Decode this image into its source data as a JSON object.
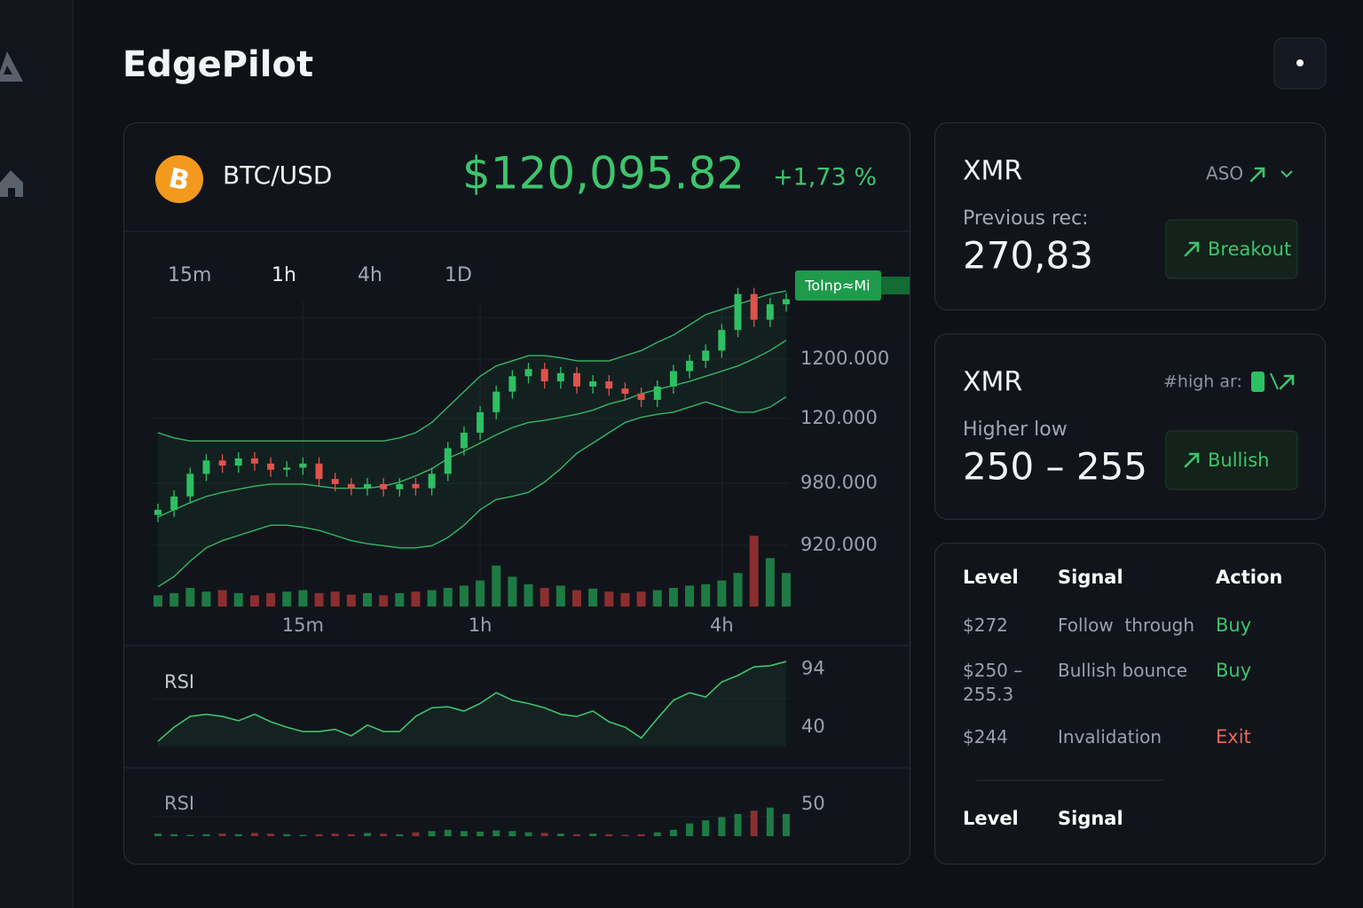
{
  "app": {
    "title": "EdgePilot"
  },
  "ticker": {
    "symbol": "BTC/USD",
    "price": "$120,095.82",
    "change": "+1,73 %",
    "price_tag": "Tolnp≈Mi"
  },
  "timeframes": {
    "items": [
      "15m",
      "1h",
      "4h",
      "1D"
    ],
    "active_index": 1
  },
  "chart_data": {
    "type": "candlestick",
    "xlim": [
      0,
      39
    ],
    "ylim": [
      860,
      1175
    ],
    "xticks": [
      {
        "value": 9,
        "label": "15m"
      },
      {
        "value": 20,
        "label": "1h"
      },
      {
        "value": 35,
        "label": "4h"
      }
    ],
    "axis_labels": [
      "1200.000",
      "120.000",
      "980.000",
      "920.000"
    ],
    "up_color": "#2fbf63",
    "down_color": "#e0524a",
    "volume_up_color": "#1e7a44",
    "volume_down_color": "#8a2f2f",
    "band_color": "#33b864",
    "open": [
      950,
      955,
      968,
      990,
      1003,
      998,
      1005,
      1000,
      994,
      996,
      1000,
      985,
      980,
      976,
      980,
      975,
      980,
      976,
      990,
      1015,
      1030,
      1050,
      1070,
      1085,
      1092,
      1080,
      1088,
      1075,
      1080,
      1073,
      1068,
      1062,
      1075,
      1090,
      1100,
      1110,
      1130,
      1165,
      1140,
      1155
    ],
    "close": [
      955,
      968,
      990,
      1003,
      998,
      1005,
      1000,
      994,
      996,
      1000,
      985,
      980,
      976,
      980,
      975,
      980,
      976,
      990,
      1015,
      1030,
      1050,
      1070,
      1085,
      1092,
      1080,
      1088,
      1075,
      1080,
      1073,
      1068,
      1062,
      1075,
      1090,
      1100,
      1110,
      1130,
      1165,
      1140,
      1155,
      1160
    ],
    "high": [
      961,
      974,
      996,
      1009,
      1009,
      1011,
      1011,
      1006,
      1002,
      1006,
      1006,
      991,
      986,
      986,
      986,
      986,
      986,
      996,
      1021,
      1036,
      1056,
      1076,
      1091,
      1098,
      1098,
      1094,
      1094,
      1086,
      1086,
      1079,
      1074,
      1081,
      1096,
      1106,
      1116,
      1136,
      1171,
      1171,
      1161,
      1166
    ],
    "low": [
      943,
      948,
      961,
      983,
      991,
      991,
      993,
      987,
      987,
      989,
      978,
      973,
      969,
      969,
      968,
      968,
      969,
      969,
      983,
      1008,
      1023,
      1043,
      1063,
      1078,
      1073,
      1073,
      1068,
      1068,
      1066,
      1061,
      1055,
      1055,
      1068,
      1083,
      1093,
      1103,
      1123,
      1133,
      1133,
      1148
    ],
    "upper_band": [
      1030,
      1025,
      1022,
      1022,
      1022,
      1022,
      1022,
      1022,
      1022,
      1022,
      1022,
      1022,
      1022,
      1022,
      1022,
      1025,
      1030,
      1040,
      1055,
      1070,
      1085,
      1095,
      1100,
      1105,
      1105,
      1103,
      1100,
      1100,
      1100,
      1105,
      1110,
      1118,
      1125,
      1135,
      1145,
      1150,
      1155,
      1160,
      1165,
      1168
    ],
    "middle_band": [
      948,
      955,
      962,
      968,
      972,
      975,
      978,
      980,
      980,
      980,
      978,
      976,
      976,
      976,
      978,
      982,
      988,
      995,
      1005,
      1012,
      1020,
      1028,
      1035,
      1040,
      1042,
      1045,
      1048,
      1052,
      1058,
      1062,
      1068,
      1072,
      1076,
      1080,
      1085,
      1090,
      1095,
      1102,
      1110,
      1120
    ],
    "lower_band": [
      880,
      890,
      905,
      918,
      925,
      930,
      935,
      940,
      940,
      938,
      935,
      930,
      925,
      922,
      920,
      918,
      918,
      920,
      928,
      940,
      955,
      965,
      968,
      972,
      982,
      995,
      1010,
      1020,
      1030,
      1040,
      1045,
      1048,
      1050,
      1055,
      1060,
      1055,
      1050,
      1050,
      1055,
      1065
    ],
    "volume_ylim": [
      0,
      100
    ],
    "volume": [
      15,
      18,
      25,
      20,
      22,
      18,
      15,
      18,
      20,
      22,
      18,
      20,
      16,
      18,
      15,
      18,
      20,
      22,
      25,
      28,
      35,
      55,
      40,
      30,
      25,
      28,
      22,
      24,
      20,
      18,
      20,
      22,
      25,
      28,
      30,
      35,
      45,
      95,
      65,
      45
    ],
    "rsi": {
      "label": "RSI",
      "ylim": [
        22,
        110
      ],
      "yticks": [
        94,
        40
      ],
      "color": "#3ec46d",
      "values": [
        27,
        40,
        50,
        52,
        50,
        46,
        52,
        45,
        40,
        36,
        36,
        38,
        32,
        42,
        36,
        36,
        50,
        58,
        59,
        55,
        62,
        72,
        65,
        62,
        58,
        52,
        50,
        55,
        45,
        40,
        30,
        48,
        65,
        72,
        68,
        82,
        88,
        96,
        97,
        101
      ]
    },
    "rsi_histogram": {
      "label": "RSI",
      "ylim": [
        0,
        60
      ],
      "yticks": [
        50
      ],
      "values": [
        4,
        3,
        2,
        3,
        4,
        3,
        5,
        4,
        3,
        2,
        3,
        4,
        3,
        5,
        4,
        3,
        6,
        8,
        10,
        8,
        7,
        9,
        8,
        6,
        5,
        4,
        3,
        4,
        3,
        2,
        3,
        6,
        10,
        20,
        25,
        30,
        35,
        40,
        45,
        35
      ]
    }
  },
  "cards": [
    {
      "symbol": "XMR",
      "tag": "ASO",
      "label": "Previous rec:",
      "value": "270,83",
      "button": "Breakout"
    },
    {
      "symbol": "XMR",
      "tag": "#high ar:",
      "label": "Higher low",
      "value": "250 – 255",
      "button": "Bullish"
    }
  ],
  "table": {
    "headers": [
      "Level",
      "Signal",
      "Action"
    ],
    "rows": [
      {
        "level": "$272",
        "signal": "Follow  through",
        "action": "Buy",
        "color": "#3ec46d"
      },
      {
        "level": "$250 – 255.3",
        "signal": "Bullish bounce",
        "action": "Buy",
        "color": "#3ec46d"
      },
      {
        "level": "$244",
        "signal": "Invalidation",
        "action": "Exit",
        "color": "#e8675c"
      }
    ],
    "footer_headers": [
      "Level",
      "Signal"
    ]
  }
}
